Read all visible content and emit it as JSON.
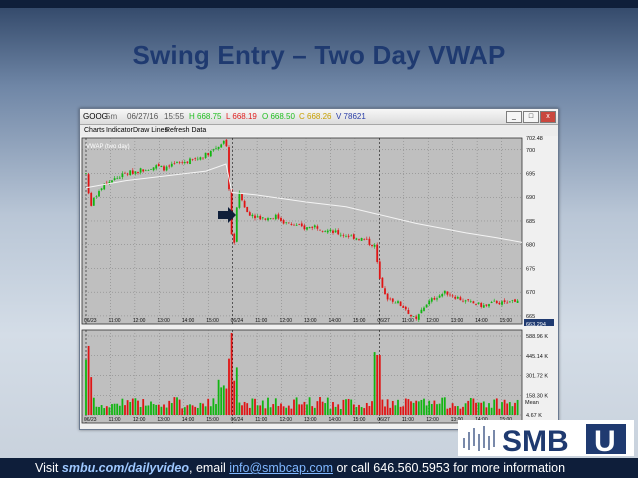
{
  "slide": {
    "title": "Swing Entry – Two Day VWAP"
  },
  "window": {
    "symbol": "GOOG",
    "interval": "5m",
    "date": "06/27/16",
    "time": "15:55",
    "high": "H 668.75",
    "low": "L 668.19",
    "open": "O 668.50",
    "close": "C 668.26",
    "volume": "V 78621",
    "minimize": "_",
    "maximize": "□",
    "close_btn": "x",
    "colors": {
      "high": "#1fbf1f",
      "low": "#e02020",
      "open": "#1fbf1f",
      "close": "#c8a000",
      "volume": "#2a3ea8"
    }
  },
  "menu": {
    "items": [
      "Charts",
      "Indicator",
      "Draw Lines",
      "Refresh Data"
    ]
  },
  "chart": {
    "study_label": "VWAP (two day)",
    "price_axis": [
      "702.48",
      "700",
      "695",
      "690",
      "685",
      "680",
      "675",
      "670",
      "665",
      "663.294"
    ],
    "price_highlight": "663.294",
    "time_labels": [
      "06/23",
      "11:00",
      "12:00",
      "13:00",
      "14:00",
      "15:00",
      "06/24",
      "11:00",
      "12:00",
      "13:00",
      "14:00",
      "15:00",
      "06/27",
      "11:00",
      "12:00",
      "13:00",
      "14:00",
      "15:00"
    ],
    "volume_axis": [
      "588.96 K",
      "445.14 K",
      "301.72 K",
      "158.30 K",
      "4.67 K"
    ],
    "volume_mean_label": "Mean",
    "colors": {
      "up": "#12b512",
      "down": "#e01414",
      "vwap": "#f4f4f4",
      "plot_bg": "#bfbfbf",
      "grid": "#6a6a6a",
      "arrow": "#0f1f3a"
    }
  },
  "footer": {
    "prefix": "Visit ",
    "url_text": "smbu.com/dailyvideo",
    "middle": ", email ",
    "email": "info@smbcap.com",
    "suffix": " or call 646.560.5953 for more information"
  },
  "logo": {
    "text": "SMB",
    "letter": "U",
    "icon": "bar-chart-logo-icon"
  }
}
